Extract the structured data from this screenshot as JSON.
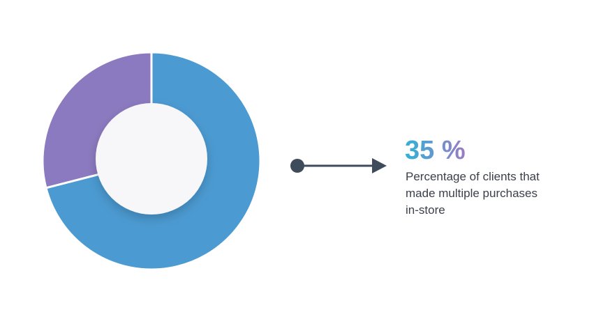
{
  "chart_data": {
    "type": "pie",
    "values": [
      71,
      29
    ],
    "colors": [
      "#4b9ad1",
      "#8b7abf"
    ],
    "donut": true
  },
  "callout": {
    "figure": "35 %",
    "lines": [
      "Percentage of clients that",
      "made multiple purchases",
      "in-store"
    ]
  }
}
